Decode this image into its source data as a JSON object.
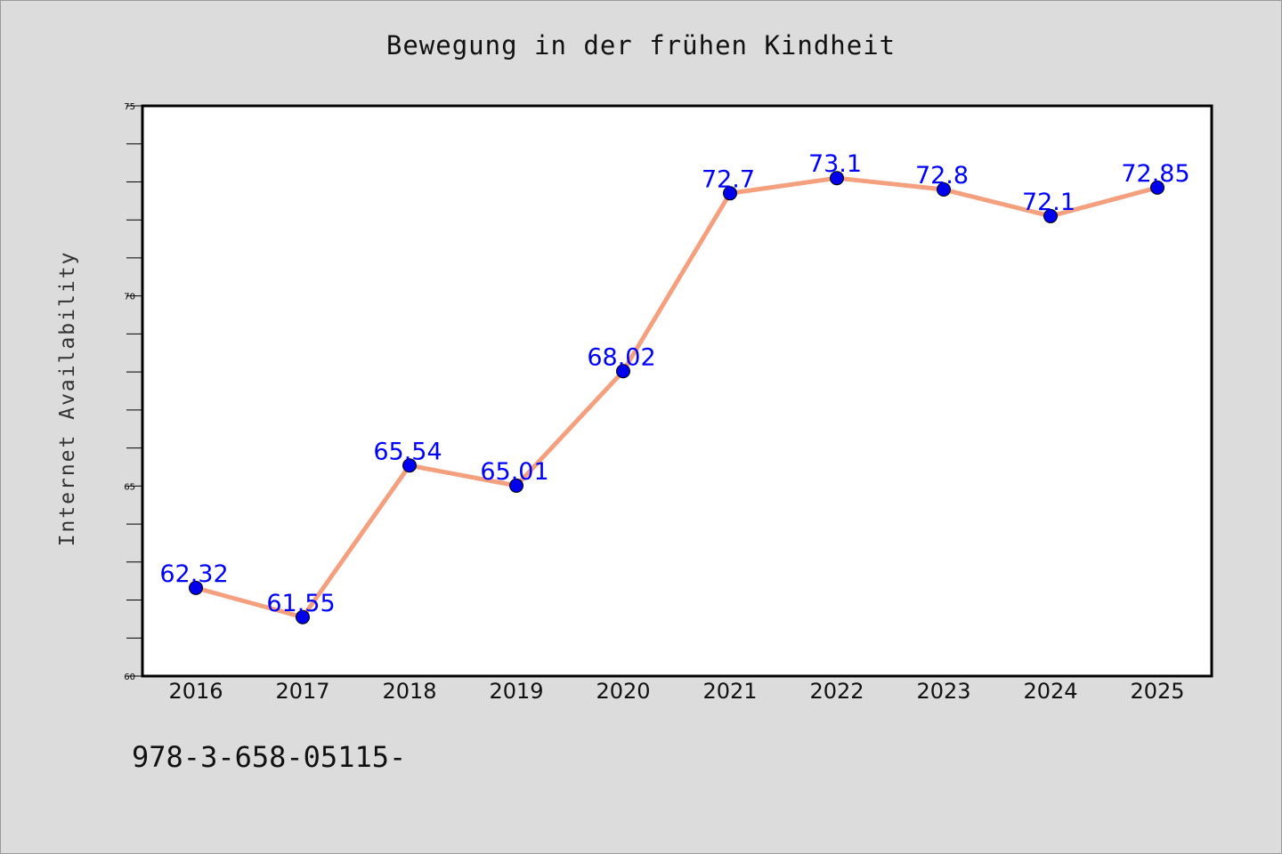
{
  "page": {
    "title": "Bewegung in der frühen Kindheit",
    "isbn": "978-3-658-05115-"
  },
  "chart_data": {
    "type": "line",
    "title": "Bewegung in der frühen Kindheit",
    "xlabel": "",
    "ylabel": "Internet Availability",
    "categories": [
      "2016",
      "2017",
      "2018",
      "2019",
      "2020",
      "2021",
      "2022",
      "2023",
      "2024",
      "2025"
    ],
    "values": [
      62.32,
      61.55,
      65.54,
      65.01,
      68.02,
      72.7,
      73.1,
      72.8,
      72.1,
      72.85
    ],
    "data_labels": [
      "62.32",
      "61.55",
      "65.54",
      "65.01",
      "68.02",
      "72.7",
      "73.1",
      "72.8",
      "72.1",
      "72.85"
    ],
    "ylim": [
      60,
      75
    ],
    "y_tick_labels": [
      "60",
      "65",
      "70",
      "75"
    ],
    "grid": false,
    "line_color": "#f4a07e",
    "marker_color": "#0000ee",
    "label_color": "#0000ff"
  }
}
